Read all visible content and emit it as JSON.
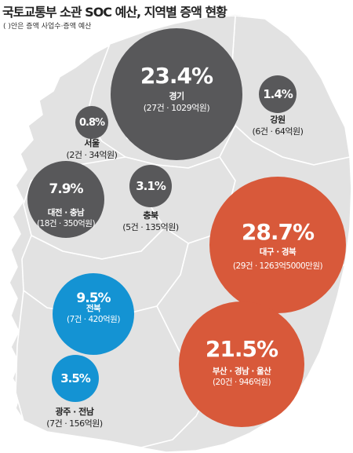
{
  "title": "국토교통부 소관 SOC 예산, 지역별 증액 현황",
  "subtitle": "( )안은 증액 사업수·증액 예산",
  "colors": {
    "map_fill": "#e2e2e2",
    "map_stroke": "#ffffff",
    "gray": "#58585a",
    "orange": "#d8593a",
    "blue": "#1493d3"
  },
  "regions": [
    {
      "id": "gyeonggi",
      "percent": "23.4%",
      "name": "경기",
      "detail": "(27건 · 1029억원)",
      "color": "gray"
    },
    {
      "id": "gangwon",
      "percent": "1.4%",
      "name": "강원",
      "detail": "(6건 · 64억원)",
      "color": "gray"
    },
    {
      "id": "seoul",
      "percent": "0.8%",
      "name": "서울",
      "detail": "(2건 · 34억원)",
      "color": "gray"
    },
    {
      "id": "daejeon-chungnam",
      "percent": "7.9%",
      "name": "대전 · 충남",
      "detail": "(18건 · 350억원)",
      "color": "gray"
    },
    {
      "id": "chungbuk",
      "percent": "3.1%",
      "name": "충북",
      "detail": "(5건 · 135억원)",
      "color": "gray"
    },
    {
      "id": "daegu-gyeongbuk",
      "percent": "28.7%",
      "name": "대구 · 경북",
      "detail": "(29건 · 1263억5000만원)",
      "color": "orange"
    },
    {
      "id": "jeonbuk",
      "percent": "9.5%",
      "name": "전북",
      "detail": "(7건 · 420억원)",
      "color": "blue"
    },
    {
      "id": "gwangju-jeonnam",
      "percent": "3.5%",
      "name": "광주 · 전남",
      "detail": "(7건 · 156억원)",
      "color": "blue"
    },
    {
      "id": "busan-gyeongnam-ulsan",
      "percent": "21.5%",
      "name": "부산 · 경남 · 울산",
      "detail": "(20건 · 946억원)",
      "color": "orange"
    }
  ]
}
